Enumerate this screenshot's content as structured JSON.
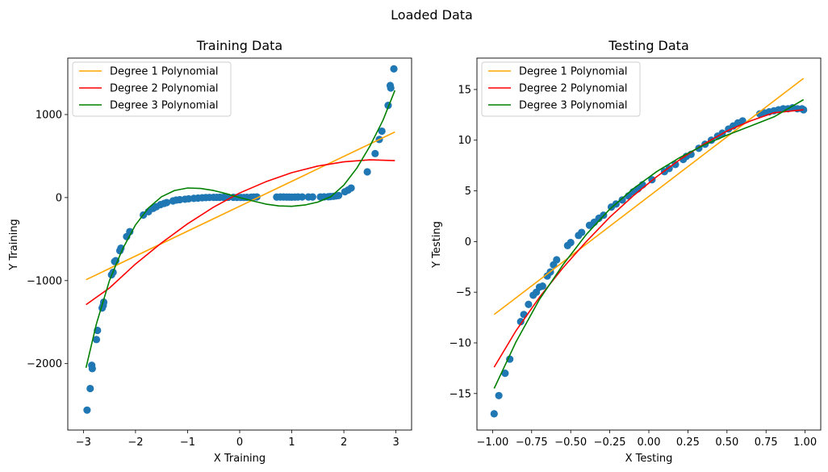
{
  "figure": {
    "suptitle": "Loaded Data"
  },
  "chart_data": [
    {
      "type": "scatter",
      "title": "Training Data",
      "xlabel": "X Training",
      "ylabel": "Y Training",
      "xlim": [
        -3.3,
        3.3
      ],
      "ylim": [
        -2800,
        1680
      ],
      "xticks": [
        -3,
        -2,
        -1,
        0,
        1,
        2,
        3
      ],
      "xtick_labels": [
        "−3",
        "−2",
        "−1",
        "0",
        "1",
        "2",
        "3"
      ],
      "yticks": [
        -2000,
        -1000,
        0,
        1000
      ],
      "ytick_labels": [
        "−2000",
        "−1000",
        "0",
        "1000"
      ],
      "grid": false,
      "legend_position": "top-left",
      "scatter_color": "#1f77b4",
      "points": [
        [
          -2.93,
          -2560
        ],
        [
          -2.87,
          -2300
        ],
        [
          -2.84,
          -2020
        ],
        [
          -2.83,
          -2060
        ],
        [
          -2.75,
          -1710
        ],
        [
          -2.73,
          -1600
        ],
        [
          -2.64,
          -1330
        ],
        [
          -2.62,
          -1300
        ],
        [
          -2.61,
          -1260
        ],
        [
          -2.46,
          -930
        ],
        [
          -2.43,
          -900
        ],
        [
          -2.4,
          -770
        ],
        [
          -2.38,
          -760
        ],
        [
          -2.3,
          -640
        ],
        [
          -2.28,
          -610
        ],
        [
          -2.17,
          -470
        ],
        [
          -2.11,
          -410
        ],
        [
          -1.85,
          -210
        ],
        [
          -1.75,
          -170
        ],
        [
          -1.66,
          -130
        ],
        [
          -1.6,
          -110
        ],
        [
          -1.52,
          -85
        ],
        [
          -1.45,
          -70
        ],
        [
          -1.4,
          -60
        ],
        [
          -1.28,
          -40
        ],
        [
          -1.22,
          -30
        ],
        [
          -1.15,
          -25
        ],
        [
          -1.05,
          -20
        ],
        [
          -0.98,
          -15
        ],
        [
          -0.88,
          -10
        ],
        [
          -0.8,
          -6
        ],
        [
          -0.72,
          -2
        ],
        [
          -0.65,
          0
        ],
        [
          -0.58,
          2
        ],
        [
          -0.5,
          3
        ],
        [
          -0.44,
          3
        ],
        [
          -0.38,
          4
        ],
        [
          -0.31,
          4
        ],
        [
          -0.22,
          3
        ],
        [
          -0.12,
          3
        ],
        [
          -0.05,
          2
        ],
        [
          0.02,
          2
        ],
        [
          0.08,
          2
        ],
        [
          0.14,
          3
        ],
        [
          0.22,
          5
        ],
        [
          0.27,
          6
        ],
        [
          0.33,
          8
        ],
        [
          0.71,
          6
        ],
        [
          0.78,
          7
        ],
        [
          0.84,
          7
        ],
        [
          0.9,
          6
        ],
        [
          0.95,
          6
        ],
        [
          1.0,
          5
        ],
        [
          1.06,
          6
        ],
        [
          1.12,
          7
        ],
        [
          1.2,
          8
        ],
        [
          1.32,
          7
        ],
        [
          1.4,
          7
        ],
        [
          1.55,
          8
        ],
        [
          1.62,
          9
        ],
        [
          1.7,
          10
        ],
        [
          1.74,
          12
        ],
        [
          1.8,
          15
        ],
        [
          1.85,
          20
        ],
        [
          1.9,
          25
        ],
        [
          2.02,
          70
        ],
        [
          2.08,
          90
        ],
        [
          2.14,
          115
        ],
        [
          2.45,
          310
        ],
        [
          2.6,
          530
        ],
        [
          2.68,
          700
        ],
        [
          2.73,
          800
        ],
        [
          2.85,
          1110
        ],
        [
          2.89,
          1350
        ],
        [
          2.9,
          1320
        ],
        [
          2.96,
          1550
        ]
      ],
      "series": [
        {
          "name": "Degree 1 Polynomial",
          "color": "#ffa500",
          "x": [
            -2.95,
            2.98
          ],
          "y": [
            -990,
            790
          ]
        },
        {
          "name": "Degree 2 Polynomial",
          "color": "#ff0000",
          "x": [
            -2.95,
            -2.5,
            -2.0,
            -1.5,
            -1.0,
            -0.5,
            0.0,
            0.5,
            1.0,
            1.5,
            2.0,
            2.5,
            2.98
          ],
          "y": [
            -1290,
            -1090,
            -800,
            -545,
            -315,
            -115,
            55,
            190,
            300,
            380,
            430,
            455,
            445
          ]
        },
        {
          "name": "Degree 3 Polynomial",
          "color": "#008000",
          "x": [
            -2.95,
            -2.75,
            -2.5,
            -2.25,
            -2.0,
            -1.75,
            -1.5,
            -1.25,
            -1.0,
            -0.75,
            -0.5,
            -0.25,
            0.0,
            0.25,
            0.5,
            0.75,
            1.0,
            1.25,
            1.5,
            1.75,
            2.0,
            2.25,
            2.5,
            2.75,
            2.98
          ],
          "y": [
            -2050,
            -1520,
            -1000,
            -620,
            -330,
            -125,
            10,
            85,
            115,
            110,
            85,
            45,
            0,
            -40,
            -78,
            -100,
            -105,
            -90,
            -55,
            10,
            150,
            355,
            620,
            930,
            1290
          ]
        }
      ]
    },
    {
      "type": "scatter",
      "title": "Testing Data",
      "xlabel": "X Testing",
      "ylabel": "Y Testing",
      "xlim": [
        -1.1,
        1.1
      ],
      "ylim": [
        -18.6,
        18.1
      ],
      "xticks": [
        -1.0,
        -0.75,
        -0.5,
        -0.25,
        0.0,
        0.25,
        0.5,
        0.75,
        1.0
      ],
      "xtick_labels": [
        "−1.00",
        "−0.75",
        "−0.50",
        "−0.25",
        "0.00",
        "0.25",
        "0.50",
        "0.75",
        "1.00"
      ],
      "yticks": [
        -15,
        -10,
        -5,
        0,
        5,
        10,
        15
      ],
      "ytick_labels": [
        "−15",
        "−10",
        "−5",
        "0",
        "5",
        "10",
        "15"
      ],
      "grid": false,
      "legend_position": "top-left",
      "scatter_color": "#1f77b4",
      "points": [
        [
          -0.99,
          -17.0
        ],
        [
          -0.96,
          -15.2
        ],
        [
          -0.92,
          -13.0
        ],
        [
          -0.89,
          -11.6
        ],
        [
          -0.82,
          -7.9
        ],
        [
          -0.8,
          -7.2
        ],
        [
          -0.77,
          -6.2
        ],
        [
          -0.74,
          -5.3
        ],
        [
          -0.72,
          -5.0
        ],
        [
          -0.7,
          -4.5
        ],
        [
          -0.68,
          -4.4
        ],
        [
          -0.65,
          -3.4
        ],
        [
          -0.63,
          -3.0
        ],
        [
          -0.61,
          -2.3
        ],
        [
          -0.59,
          -1.8
        ],
        [
          -0.52,
          -0.4
        ],
        [
          -0.5,
          -0.1
        ],
        [
          -0.45,
          0.6
        ],
        [
          -0.43,
          0.9
        ],
        [
          -0.38,
          1.6
        ],
        [
          -0.35,
          1.9
        ],
        [
          -0.32,
          2.3
        ],
        [
          -0.29,
          2.6
        ],
        [
          -0.24,
          3.4
        ],
        [
          -0.21,
          3.7
        ],
        [
          -0.17,
          4.1
        ],
        [
          -0.13,
          4.5
        ],
        [
          -0.1,
          4.9
        ],
        [
          -0.07,
          5.2
        ],
        [
          -0.04,
          5.6
        ],
        [
          0.02,
          6.1
        ],
        [
          0.1,
          6.9
        ],
        [
          0.13,
          7.2
        ],
        [
          0.17,
          7.6
        ],
        [
          0.22,
          8.1
        ],
        [
          0.24,
          8.4
        ],
        [
          0.27,
          8.6
        ],
        [
          0.32,
          9.2
        ],
        [
          0.36,
          9.6
        ],
        [
          0.4,
          10.0
        ],
        [
          0.44,
          10.4
        ],
        [
          0.47,
          10.7
        ],
        [
          0.51,
          11.1
        ],
        [
          0.54,
          11.4
        ],
        [
          0.57,
          11.7
        ],
        [
          0.6,
          11.9
        ],
        [
          0.71,
          12.6
        ],
        [
          0.74,
          12.7
        ],
        [
          0.77,
          12.8
        ],
        [
          0.8,
          12.9
        ],
        [
          0.83,
          13.0
        ],
        [
          0.86,
          13.1
        ],
        [
          0.89,
          13.1
        ],
        [
          0.92,
          13.2
        ],
        [
          0.95,
          13.1
        ],
        [
          0.98,
          13.1
        ],
        [
          0.99,
          13.0
        ]
      ],
      "series": [
        {
          "name": "Degree 1 Polynomial",
          "color": "#ffa500",
          "x": [
            -0.99,
            0.99
          ],
          "y": [
            -7.2,
            16.1
          ]
        },
        {
          "name": "Degree 2 Polynomial",
          "color": "#ff0000",
          "x": [
            -0.99,
            -0.85,
            -0.7,
            -0.55,
            -0.4,
            -0.25,
            -0.1,
            0.05,
            0.2,
            0.35,
            0.5,
            0.65,
            0.8,
            0.99
          ],
          "y": [
            -12.4,
            -8.8,
            -5.5,
            -2.6,
            0.0,
            2.4,
            4.5,
            6.4,
            8.1,
            9.6,
            10.9,
            11.9,
            12.7,
            13.0
          ]
        },
        {
          "name": "Degree 3 Polynomial",
          "color": "#008000",
          "x": [
            -0.99,
            -0.85,
            -0.7,
            -0.55,
            -0.4,
            -0.25,
            -0.1,
            0.05,
            0.2,
            0.35,
            0.5,
            0.65,
            0.8,
            0.99
          ],
          "y": [
            -14.5,
            -9.9,
            -5.7,
            -2.3,
            0.7,
            3.2,
            5.2,
            6.9,
            8.3,
            9.5,
            10.5,
            11.4,
            12.3,
            14.0
          ]
        }
      ]
    }
  ]
}
